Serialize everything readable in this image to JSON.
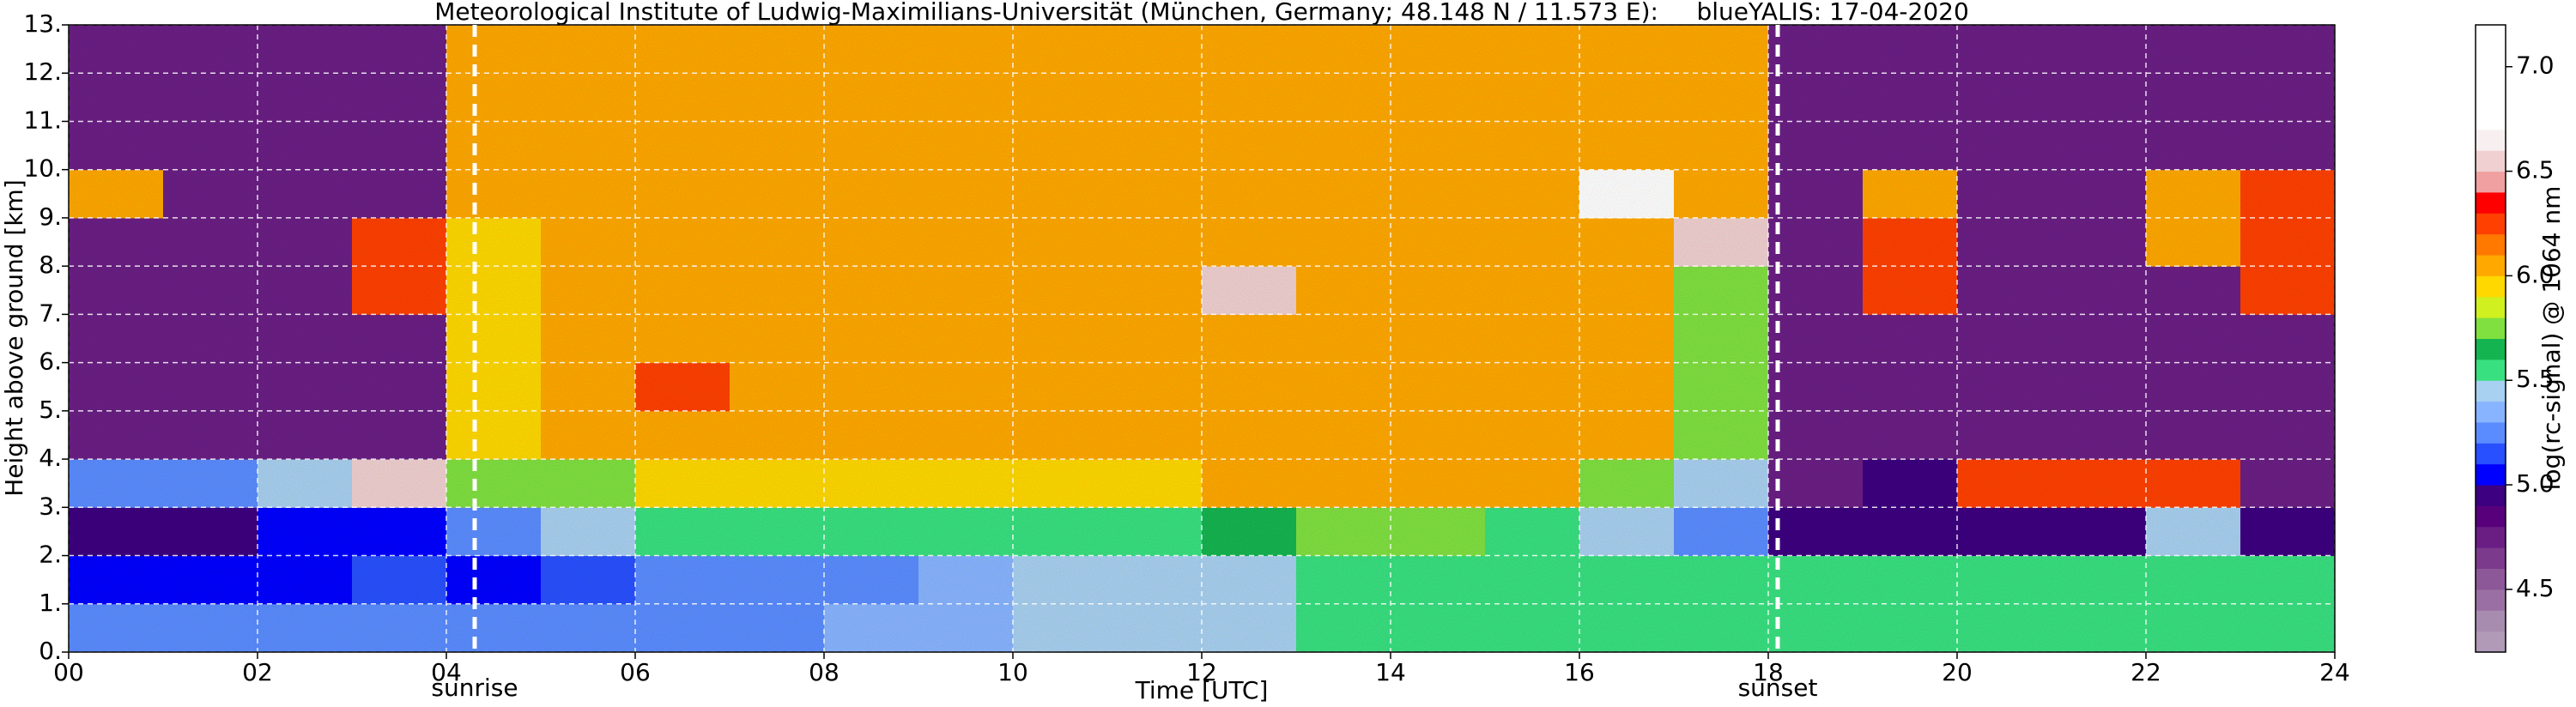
{
  "chart_data": {
    "type": "heatmap",
    "title": "Meteorological Institute of Ludwig-Maximilians-Universität (München, Germany; 48.148 N / 11.573 E):     blueYALIS: 17-04-2020",
    "xlabel": "Time [UTC]",
    "ylabel": "Height above ground [km]",
    "colorbar_label": "log(rc-signal) @ 1064 nm",
    "xlim": [
      0,
      24
    ],
    "ylim": [
      0,
      13
    ],
    "zlim": [
      4.2,
      7.2
    ],
    "xticks": [
      {
        "value": 0,
        "label": "00"
      },
      {
        "value": 2,
        "label": "02"
      },
      {
        "value": 4,
        "label": "04"
      },
      {
        "value": 6,
        "label": "06"
      },
      {
        "value": 8,
        "label": "08"
      },
      10,
      12,
      14,
      16,
      18,
      20,
      22,
      24
    ],
    "yticks": [
      {
        "value": 0,
        "label": "0."
      },
      {
        "value": 1,
        "label": "1."
      },
      {
        "value": 2,
        "label": "2."
      },
      {
        "value": 3,
        "label": "3."
      },
      {
        "value": 4,
        "label": "4."
      },
      {
        "value": 5,
        "label": "5."
      },
      {
        "value": 6,
        "label": "6."
      },
      {
        "value": 7,
        "label": "7."
      },
      {
        "value": 8,
        "label": "8."
      },
      {
        "value": 9,
        "label": "9."
      },
      {
        "value": 10,
        "label": "10."
      },
      {
        "value": 11,
        "label": "11."
      },
      {
        "value": 12,
        "label": "12."
      },
      {
        "value": 13,
        "label": "13."
      }
    ],
    "zticks": [
      4.5,
      {
        "value": 5,
        "label": "5.0"
      },
      5.5,
      {
        "value": 6,
        "label": "6.0"
      },
      6.5,
      {
        "value": 7,
        "label": "7.0"
      }
    ],
    "grid": true,
    "colors": [
      "#b09ab8",
      "#a88cb0",
      "#9a70a4",
      "#8c5898",
      "#7c3a8c",
      "#6a1e84",
      "#58007c",
      "#3c0080",
      "#0000ff",
      "#2850ff",
      "#5a8cff",
      "#88b4ff",
      "#a8d0f0",
      "#38e080",
      "#14b450",
      "#80e040",
      "#d0f020",
      "#ffd800",
      "#ffa800",
      "#ff7800",
      "#ff4000",
      "#ff0000",
      "#f0a0a0",
      "#f0d0d0",
      "#f8f0f0",
      "#ffffff",
      "#ffffff",
      "#ffffff",
      "#ffffff",
      "#ffffff"
    ],
    "xbins": [
      0,
      1,
      2,
      3,
      4,
      5,
      6,
      7,
      8,
      9,
      10,
      11,
      12,
      13,
      14,
      15,
      16,
      17,
      18,
      19,
      20,
      21,
      22,
      23,
      24
    ],
    "ybins": [
      0,
      1,
      2,
      3,
      4,
      5,
      6,
      7,
      8,
      9,
      10,
      11,
      12,
      13
    ],
    "z": [
      [
        5.3,
        5.3,
        5.3,
        5.3,
        5.3,
        5.3,
        5.3,
        5.3,
        5.35,
        5.35,
        5.4,
        5.45,
        5.5,
        5.55,
        5.55,
        5.6,
        5.6,
        5.6,
        5.55,
        5.55,
        5.55,
        5.55,
        5.55,
        5.55
      ],
      [
        5.1,
        5.1,
        5.1,
        5.15,
        5.1,
        5.15,
        5.2,
        5.25,
        5.3,
        5.35,
        5.4,
        5.45,
        5.5,
        5.55,
        5.55,
        5.6,
        5.6,
        5.6,
        5.6,
        5.6,
        5.6,
        5.6,
        5.6,
        5.6
      ],
      [
        5.0,
        5.0,
        5.05,
        5.05,
        5.3,
        5.5,
        5.6,
        5.6,
        5.6,
        5.6,
        5.6,
        5.6,
        5.65,
        5.7,
        5.7,
        5.6,
        5.5,
        5.3,
        4.9,
        4.9,
        4.9,
        4.9,
        5.4,
        4.9
      ],
      [
        5.3,
        5.3,
        5.5,
        6.6,
        5.8,
        5.8,
        5.9,
        5.9,
        5.9,
        5.9,
        5.9,
        5.9,
        6.0,
        6.0,
        6.0,
        6.0,
        5.8,
        5.5,
        4.8,
        4.9,
        6.2,
        6.3,
        6.3,
        4.8
      ],
      [
        4.7,
        4.7,
        4.7,
        4.7,
        5.9,
        6.0,
        6.0,
        6.1,
        6.1,
        6.1,
        6.1,
        6.1,
        6.1,
        6.1,
        6.1,
        6.1,
        6.0,
        5.8,
        4.7,
        4.7,
        4.7,
        4.7,
        4.7,
        4.7
      ],
      [
        4.7,
        4.7,
        4.7,
        4.7,
        5.9,
        6.1,
        6.3,
        6.1,
        6.1,
        6.1,
        6.1,
        6.1,
        6.1,
        6.1,
        6.1,
        6.1,
        6.1,
        5.8,
        4.7,
        4.7,
        4.7,
        4.7,
        4.7,
        4.7
      ],
      [
        4.7,
        4.7,
        4.7,
        4.7,
        5.9,
        6.1,
        6.1,
        6.1,
        6.1,
        6.1,
        6.1,
        6.1,
        6.1,
        6.1,
        6.1,
        6.1,
        6.1,
        5.8,
        4.7,
        4.7,
        4.7,
        4.7,
        4.7,
        4.7
      ],
      [
        4.7,
        4.7,
        4.7,
        6.2,
        5.9,
        6.1,
        6.1,
        6.1,
        6.1,
        6.1,
        6.1,
        6.1,
        6.6,
        6.1,
        6.1,
        6.1,
        6.1,
        5.8,
        4.7,
        6.2,
        4.7,
        4.7,
        4.7,
        6.2
      ],
      [
        4.7,
        4.7,
        4.7,
        6.2,
        5.9,
        6.1,
        6.1,
        6.1,
        6.1,
        6.1,
        6.1,
        6.1,
        6.1,
        6.1,
        6.1,
        6.1,
        6.1,
        6.6,
        4.7,
        6.3,
        4.7,
        4.7,
        6.0,
        6.2
      ],
      [
        6.0,
        4.7,
        4.7,
        4.7,
        6.0,
        6.1,
        6.1,
        6.1,
        6.1,
        6.1,
        6.1,
        6.1,
        6.1,
        6.1,
        6.1,
        6.1,
        6.8,
        6.0,
        4.7,
        6.1,
        4.7,
        4.7,
        6.0,
        6.2
      ],
      [
        4.8,
        4.8,
        4.8,
        4.8,
        6.0,
        6.1,
        6.1,
        6.1,
        6.1,
        6.1,
        6.1,
        6.1,
        6.1,
        6.1,
        6.1,
        6.1,
        6.1,
        6.0,
        4.8,
        4.8,
        4.8,
        4.8,
        4.8,
        4.8
      ],
      [
        4.8,
        4.8,
        4.8,
        4.8,
        6.0,
        6.1,
        6.1,
        6.1,
        6.1,
        6.1,
        6.1,
        6.1,
        6.1,
        6.1,
        6.1,
        6.1,
        6.1,
        6.0,
        4.8,
        4.8,
        4.8,
        4.8,
        4.8,
        4.8
      ],
      [
        4.8,
        4.8,
        4.8,
        4.8,
        6.0,
        6.1,
        6.1,
        6.1,
        6.1,
        6.1,
        6.1,
        6.1,
        6.1,
        6.1,
        6.1,
        6.1,
        6.1,
        6.0,
        4.8,
        4.8,
        4.8,
        4.8,
        4.8,
        4.8
      ]
    ],
    "annotations": [
      {
        "text": "sunrise",
        "x": 4.3
      },
      {
        "text": "sunset",
        "x": 18.1
      }
    ]
  }
}
